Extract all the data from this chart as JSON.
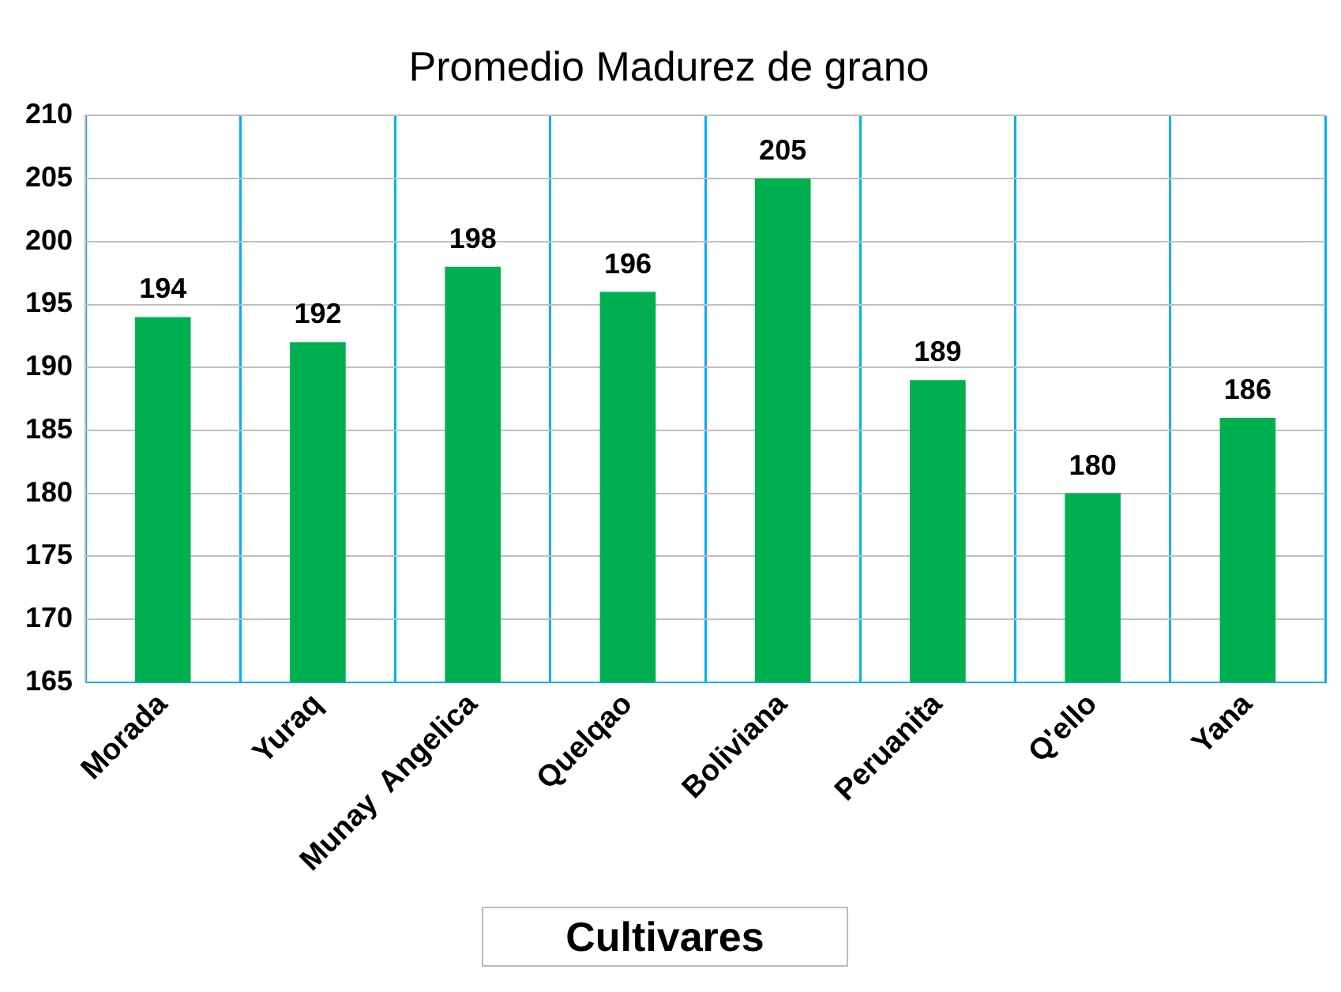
{
  "chart_data": {
    "type": "bar",
    "title": "Promedio Madurez de grano",
    "xlabel": "Cultivares",
    "categories": [
      "Morada",
      "Yuraq",
      "Munay  Angelica",
      "Quelqao",
      "Boliviana",
      "Peruanita",
      "Q'ello",
      "Yana"
    ],
    "values": [
      194,
      192,
      198,
      196,
      205,
      189,
      180,
      186
    ],
    "color": "#00b050",
    "ylim": [
      165,
      210
    ],
    "yticks": [
      165,
      170,
      175,
      180,
      185,
      190,
      195,
      200,
      205,
      210
    ],
    "grid": true,
    "data_labels": true
  }
}
